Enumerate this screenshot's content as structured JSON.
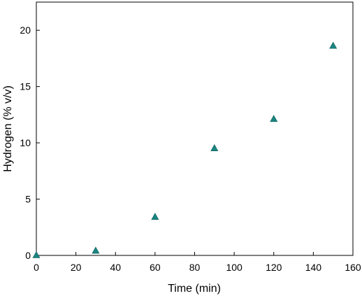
{
  "chart_data": {
    "type": "scatter",
    "title": "",
    "xlabel": "Time (min)",
    "ylabel": "Hydrogen (% v/v)",
    "xlim": [
      0,
      160
    ],
    "ylim": [
      0,
      22.5
    ],
    "x_ticks": [
      0,
      20,
      40,
      60,
      80,
      100,
      120,
      140,
      160
    ],
    "y_ticks": [
      0,
      5,
      10,
      15,
      20
    ],
    "grid": false,
    "marker": "triangle-up",
    "marker_color": "#1a8480",
    "series": [
      {
        "x": [
          0,
          30,
          60,
          90,
          120,
          150
        ],
        "y": [
          0,
          0.4,
          3.4,
          9.5,
          12.1,
          18.6
        ]
      }
    ]
  }
}
